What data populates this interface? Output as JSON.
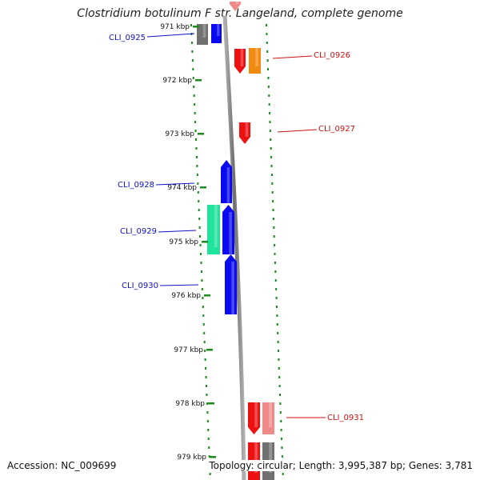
{
  "title": "Clostridium botulinum F str. Langeland, complete genome",
  "accession": "Accession: NC_009699",
  "topology": "Topology: circular; Length: 3,995,387 bp; Genes: 3,781",
  "ticks": [
    "971 kbp",
    "972 kbp",
    "973 kbp",
    "974 kbp",
    "975 kbp",
    "976 kbp",
    "977 kbp",
    "978 kbp",
    "979 kbp"
  ],
  "colors": {
    "backbone": "#888888",
    "forward_label": "#1010c8",
    "reverse_label": "#d01010",
    "tick": "#1a8a1a",
    "blue": "#0a0af0",
    "red": "#ee1111",
    "orange": "#f28a10",
    "teal": "#1ee39a",
    "gray": "#707070",
    "pink": "#f08a8a"
  },
  "labels": [
    {
      "text": "CLI_0925",
      "strand": "forward"
    },
    {
      "text": "CLI_0926",
      "strand": "reverse"
    },
    {
      "text": "CLI_0927",
      "strand": "reverse"
    },
    {
      "text": "CLI_0928",
      "strand": "forward"
    },
    {
      "text": "CLI_0929",
      "strand": "forward"
    },
    {
      "text": "CLI_0930",
      "strand": "forward"
    },
    {
      "text": "CLI_0931",
      "strand": "reverse"
    }
  ]
}
